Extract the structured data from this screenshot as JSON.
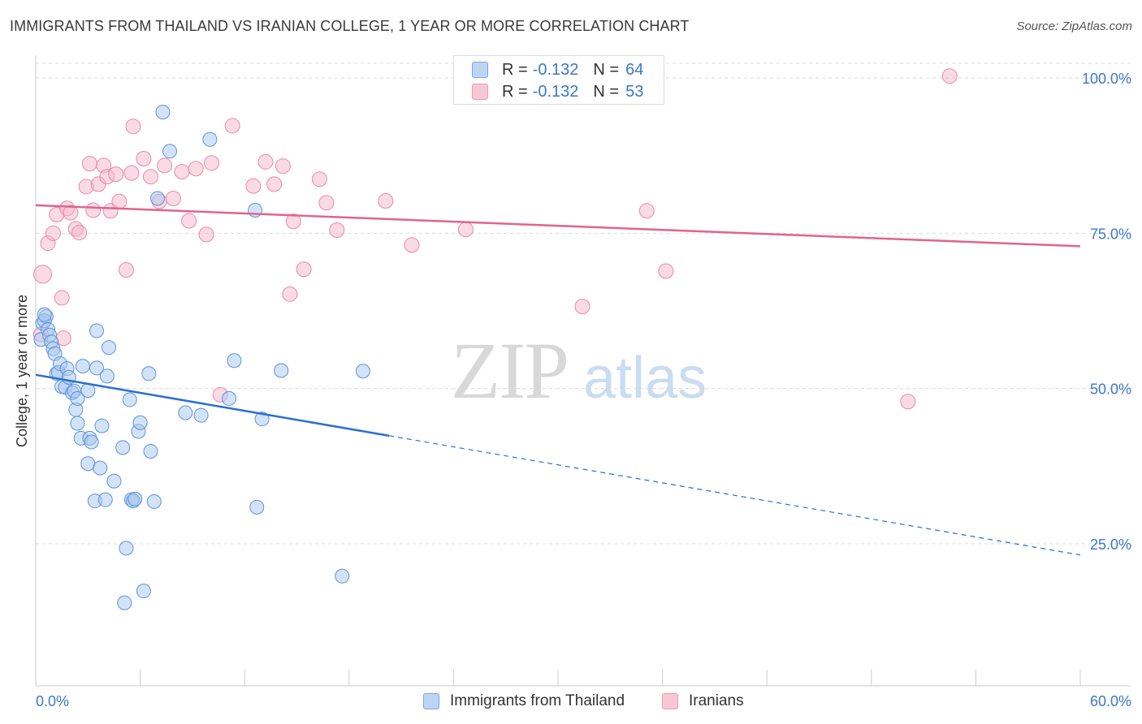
{
  "header": {
    "title": "IMMIGRANTS FROM THAILAND VS IRANIAN COLLEGE, 1 YEAR OR MORE CORRELATION CHART",
    "source": "Source: ZipAtlas.com"
  },
  "legend": {
    "rows": [
      {
        "r_label": "R =",
        "r_value": "-0.132",
        "n_label": "N =",
        "n_value": "64"
      },
      {
        "r_label": "R =",
        "r_value": "-0.132",
        "n_label": "N =",
        "n_value": "53"
      }
    ]
  },
  "colors": {
    "blue_fill": "#a8c8f0",
    "blue_stroke": "#5d93d8",
    "blue_line": "#2a6fd1",
    "pink_fill": "#f5b6c9",
    "pink_stroke": "#e88aa6",
    "pink_line": "#e0648c",
    "tick_text": "#3b78c9",
    "grid": "#d9d9d9"
  },
  "watermark": {
    "zip": "ZIP",
    "atlas": "atlas"
  },
  "chart_data": {
    "type": "scatter",
    "xlabel": "",
    "ylabel": "College, 1 year or more",
    "xlim": [
      0,
      60
    ],
    "ylim": [
      0,
      102
    ],
    "x_tick_labels": [
      "0.0%",
      "60.0%"
    ],
    "y_ticks": [
      25,
      50,
      75,
      100
    ],
    "y_tick_labels": [
      "25.0%",
      "50.0%",
      "75.0%",
      "100.0%"
    ],
    "grid": true,
    "series": [
      {
        "name": "Immigrants from Thailand",
        "color": "#a8c8f0",
        "trend": {
          "x0": 0,
          "y0": 52.2,
          "x1": 20.3,
          "y1": 42.4,
          "dashed_to_x": 60,
          "dashed_to_y": 23.2
        },
        "points": [
          [
            0.3,
            57.9
          ],
          [
            0.4,
            60.5
          ],
          [
            0.6,
            61.6
          ],
          [
            0.5,
            60.9
          ],
          [
            0.7,
            59.5
          ],
          [
            0.8,
            58.6
          ],
          [
            0.9,
            57.5
          ],
          [
            1.0,
            56.4
          ],
          [
            1.1,
            55.6
          ],
          [
            1.2,
            52.4
          ],
          [
            1.3,
            52.6
          ],
          [
            1.4,
            54.0
          ],
          [
            1.5,
            50.3
          ],
          [
            1.7,
            50.2
          ],
          [
            1.8,
            53.2
          ],
          [
            1.9,
            51.8
          ],
          [
            2.1,
            49.3
          ],
          [
            2.2,
            49.6
          ],
          [
            2.3,
            46.6
          ],
          [
            2.4,
            48.4
          ],
          [
            2.4,
            44.4
          ],
          [
            2.6,
            42.0
          ],
          [
            2.7,
            53.6
          ],
          [
            3.0,
            49.7
          ],
          [
            3.0,
            37.9
          ],
          [
            3.1,
            42.0
          ],
          [
            3.2,
            41.4
          ],
          [
            3.4,
            31.9
          ],
          [
            3.5,
            59.3
          ],
          [
            3.5,
            53.3
          ],
          [
            3.7,
            37.2
          ],
          [
            3.8,
            44.0
          ],
          [
            4.0,
            32.1
          ],
          [
            4.1,
            52.0
          ],
          [
            4.2,
            56.6
          ],
          [
            4.5,
            35.1
          ],
          [
            5.0,
            40.5
          ],
          [
            5.1,
            15.5
          ],
          [
            5.2,
            24.3
          ],
          [
            5.4,
            48.2
          ],
          [
            5.5,
            32.1
          ],
          [
            5.6,
            31.9
          ],
          [
            5.7,
            32.2
          ],
          [
            5.9,
            43.1
          ],
          [
            6.0,
            44.5
          ],
          [
            6.2,
            17.4
          ],
          [
            6.5,
            52.4
          ],
          [
            6.6,
            39.9
          ],
          [
            6.8,
            31.8
          ],
          [
            7.0,
            80.6
          ],
          [
            7.3,
            94.5
          ],
          [
            7.7,
            88.2
          ],
          [
            8.6,
            46.1
          ],
          [
            9.5,
            45.7
          ],
          [
            10.0,
            90.1
          ],
          [
            11.1,
            48.4
          ],
          [
            11.4,
            54.5
          ],
          [
            12.7,
            30.9
          ],
          [
            12.6,
            78.7
          ],
          [
            13.0,
            45.1
          ],
          [
            14.1,
            52.9
          ],
          [
            17.6,
            19.8
          ],
          [
            18.8,
            52.8
          ],
          [
            0.5,
            61.9
          ]
        ]
      },
      {
        "name": "Iranians",
        "color": "#f5b6c9",
        "trend": {
          "x0": 0,
          "y0": 79.5,
          "x1": 60,
          "y1": 72.9
        },
        "points": [
          [
            0.3,
            58.7
          ],
          [
            0.4,
            68.4
          ],
          [
            0.7,
            73.4
          ],
          [
            1.0,
            75.0
          ],
          [
            1.2,
            78.0
          ],
          [
            1.5,
            64.6
          ],
          [
            1.6,
            58.1
          ],
          [
            1.8,
            79.0
          ],
          [
            2.0,
            78.3
          ],
          [
            2.3,
            75.7
          ],
          [
            2.5,
            75.1
          ],
          [
            2.9,
            82.5
          ],
          [
            3.1,
            86.2
          ],
          [
            3.3,
            78.7
          ],
          [
            3.6,
            82.9
          ],
          [
            3.9,
            85.9
          ],
          [
            4.1,
            84.1
          ],
          [
            4.3,
            78.6
          ],
          [
            4.6,
            84.5
          ],
          [
            4.8,
            80.1
          ],
          [
            5.2,
            69.1
          ],
          [
            5.5,
            84.7
          ],
          [
            5.6,
            92.2
          ],
          [
            6.2,
            87.0
          ],
          [
            6.6,
            84.1
          ],
          [
            7.1,
            80.1
          ],
          [
            7.4,
            85.9
          ],
          [
            7.9,
            80.6
          ],
          [
            8.4,
            84.9
          ],
          [
            8.8,
            77.0
          ],
          [
            9.2,
            85.4
          ],
          [
            9.8,
            74.8
          ],
          [
            10.1,
            86.3
          ],
          [
            10.6,
            49.0
          ],
          [
            11.3,
            92.3
          ],
          [
            12.5,
            82.6
          ],
          [
            13.2,
            86.5
          ],
          [
            13.7,
            82.9
          ],
          [
            14.2,
            85.8
          ],
          [
            14.6,
            65.2
          ],
          [
            14.8,
            76.9
          ],
          [
            15.4,
            69.2
          ],
          [
            16.3,
            83.7
          ],
          [
            16.7,
            79.9
          ],
          [
            17.3,
            75.5
          ],
          [
            20.1,
            80.2
          ],
          [
            21.6,
            73.1
          ],
          [
            24.7,
            75.6
          ],
          [
            31.4,
            63.2
          ],
          [
            35.1,
            78.6
          ],
          [
            36.2,
            68.9
          ],
          [
            50.1,
            47.9
          ],
          [
            52.5,
            100.3
          ]
        ]
      }
    ]
  },
  "bottom_legend": {
    "item1": "Immigrants from Thailand",
    "item2": "Iranians"
  }
}
